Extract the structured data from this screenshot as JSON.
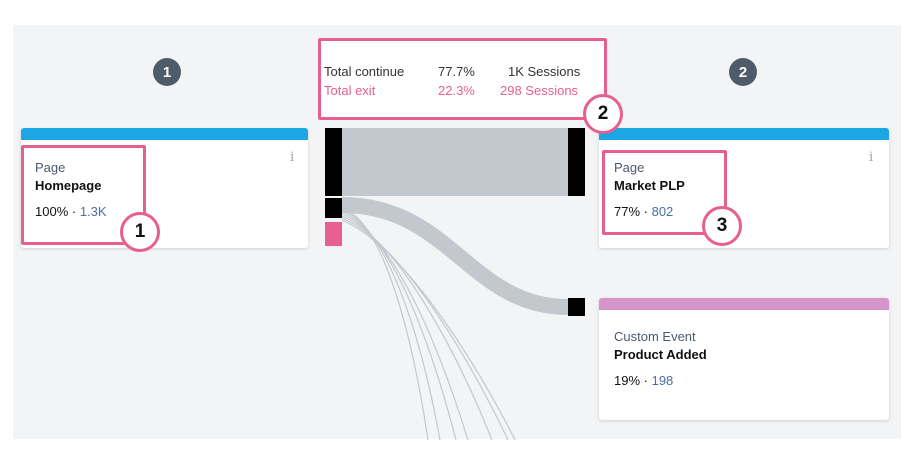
{
  "steps": [
    {
      "number": "1"
    },
    {
      "number": "2"
    }
  ],
  "summary": {
    "continue_label": "Total continue",
    "continue_pct": "77.7%",
    "continue_sessions": "1K Sessions",
    "exit_label": "Total exit",
    "exit_pct": "22.3%",
    "exit_sessions": "298 Sessions"
  },
  "cards": {
    "source": {
      "type": "Page",
      "name": "Homepage",
      "pct": "100%",
      "sep": " · ",
      "count": "1.3K",
      "bar_color": "#1ca7e4"
    },
    "market": {
      "type": "Page",
      "name": "Market PLP",
      "pct": "77%",
      "sep": " · ",
      "count": "802",
      "bar_color": "#1ca7e4"
    },
    "product": {
      "type": "Custom Event",
      "name": "Product Added",
      "pct": "19%",
      "sep": " · ",
      "count": "198",
      "bar_color": "#d694c8"
    }
  },
  "info_glyph": "i",
  "callouts": [
    "1",
    "2",
    "3"
  ],
  "colors": {
    "accent_pink": "#e65f8e",
    "flow_gray": "#bfc4ca",
    "node_black": "#000000",
    "step_circle": "#4d5b6b"
  }
}
